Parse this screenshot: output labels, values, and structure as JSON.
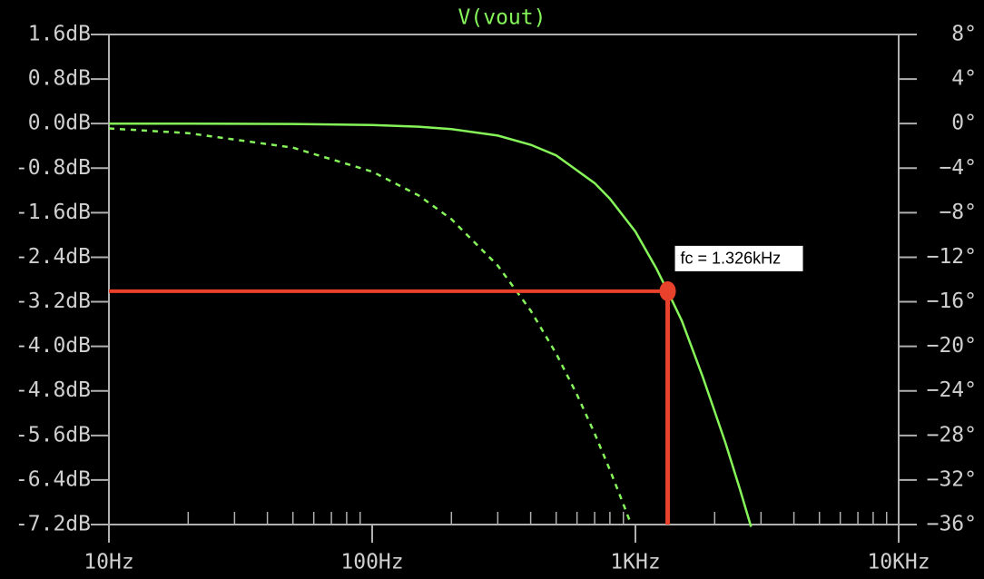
{
  "chart_data": {
    "type": "line",
    "title": "V(vout)",
    "x_scale": "log",
    "xlim": [
      10,
      10000
    ],
    "xticks": [
      {
        "value": 10,
        "label": "10Hz"
      },
      {
        "value": 100,
        "label": "100Hz"
      },
      {
        "value": 1000,
        "label": "1KHz"
      },
      {
        "value": 10000,
        "label": "10KHz"
      }
    ],
    "ylim": [
      -7.2,
      1.6
    ],
    "yticks": [
      {
        "value": 1.6,
        "label": "1.6dB"
      },
      {
        "value": 0.8,
        "label": "0.8dB"
      },
      {
        "value": 0,
        "label": "0.0dB"
      },
      {
        "value": -0.8,
        "label": "-0.8dB"
      },
      {
        "value": -1.6,
        "label": "-1.6dB"
      },
      {
        "value": -2.4,
        "label": "-2.4dB"
      },
      {
        "value": -3.2,
        "label": "-3.2dB"
      },
      {
        "value": -4.0,
        "label": "-4.0dB"
      },
      {
        "value": -4.8,
        "label": "-4.8dB"
      },
      {
        "value": -5.6,
        "label": "-5.6dB"
      },
      {
        "value": -6.4,
        "label": "-6.4dB"
      },
      {
        "value": -7.2,
        "label": "-7.2dB"
      }
    ],
    "y2lim": [
      -36,
      8
    ],
    "y2ticks": [
      {
        "value": 8,
        "label": "8°"
      },
      {
        "value": 4,
        "label": "4°"
      },
      {
        "value": 0,
        "label": "0°"
      },
      {
        "value": -4,
        "label": "−4°"
      },
      {
        "value": -8,
        "label": "−8°"
      },
      {
        "value": -12,
        "label": "−12°"
      },
      {
        "value": -16,
        "label": "−16°"
      },
      {
        "value": -20,
        "label": "−20°"
      },
      {
        "value": -24,
        "label": "−24°"
      },
      {
        "value": -28,
        "label": "−28°"
      },
      {
        "value": -32,
        "label": "−32°"
      },
      {
        "value": -36,
        "label": "−36°"
      }
    ],
    "series": [
      {
        "color": "#86f55a",
        "line_style": "solid",
        "x": [
          10,
          20,
          50,
          100,
          150,
          200,
          300,
          400,
          500,
          700,
          800,
          1000,
          1200,
          1326,
          1500,
          1800,
          2000,
          2200,
          2500,
          2750
        ],
        "values": [
          -0.0002,
          -0.001,
          -0.006,
          -0.025,
          -0.055,
          -0.098,
          -0.216,
          -0.38,
          -0.57,
          -1.07,
          -1.35,
          -1.94,
          -2.6,
          -3.01,
          -3.54,
          -4.54,
          -5.17,
          -5.74,
          -6.58,
          -7.24
        ]
      },
      {
        "color": "#86f55a",
        "line_style": "dashed",
        "axis": "y2",
        "x": [
          10,
          20,
          50,
          100,
          150,
          200,
          300,
          400,
          500,
          600,
          700,
          800,
          900,
          963
        ],
        "values": [
          -0.43,
          -0.86,
          -2.16,
          -4.31,
          -6.45,
          -8.58,
          -12.75,
          -16.79,
          -20.66,
          -24.35,
          -27.83,
          -31.1,
          -34.17,
          -36.0
        ]
      }
    ],
    "annotation": {
      "text": "fc = 1.326kHz",
      "x": 1326,
      "y": -3.01,
      "color": "#e8412c"
    }
  }
}
